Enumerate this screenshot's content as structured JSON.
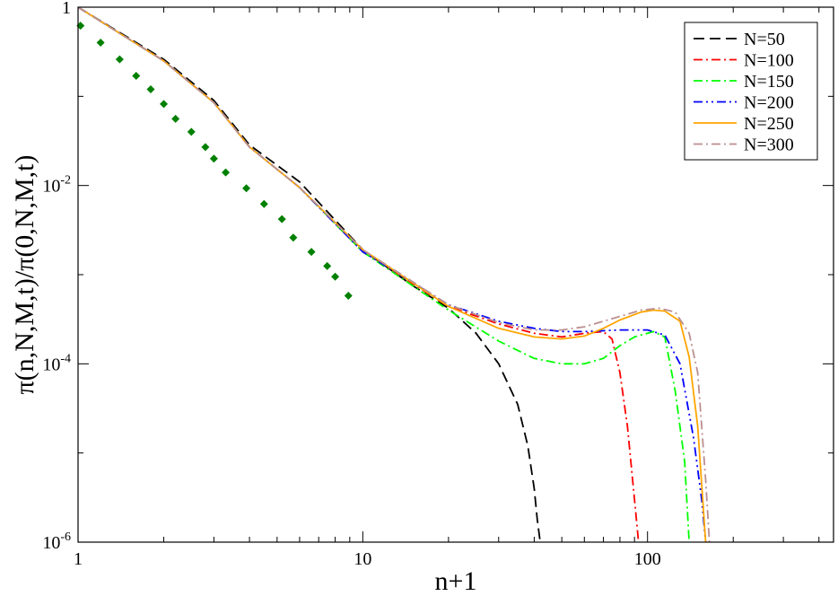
{
  "chart_data": {
    "type": "line",
    "xlabel": "n+1",
    "ylabel": "π(n,N,M,t)/π(0,N,M,t)",
    "xscale": "log",
    "yscale": "log",
    "xlim": [
      1,
      450
    ],
    "ylim": [
      1e-06,
      1
    ],
    "x_ticks": [
      {
        "value": 1,
        "label": "1"
      },
      {
        "value": 10,
        "label": "10"
      },
      {
        "value": 100,
        "label": "100"
      }
    ],
    "y_ticks": [
      {
        "value": 1,
        "base": "1",
        "exp": ""
      },
      {
        "value": 0.01,
        "base": "10",
        "exp": "-2"
      },
      {
        "value": 0.0001,
        "base": "10",
        "exp": "-4"
      },
      {
        "value": 1e-06,
        "base": "10",
        "exp": "-6"
      }
    ],
    "grid": false,
    "legend_position": "top-right",
    "series": [
      {
        "name": "N=50",
        "color": "#000000",
        "dash": "12,6",
        "points": [
          [
            1,
            1
          ],
          [
            2,
            0.26
          ],
          [
            3,
            0.09
          ],
          [
            4,
            0.0285
          ],
          [
            6,
            0.011
          ],
          [
            10,
            0.0019
          ],
          [
            15,
            0.00075
          ],
          [
            20,
            0.00042
          ],
          [
            25,
            0.00022
          ],
          [
            30,
            0.0001
          ],
          [
            35,
            3.5e-05
          ],
          [
            38,
            1.2e-05
          ],
          [
            40,
            4e-06
          ],
          [
            41,
            1.8e-06
          ],
          [
            42,
            1e-06
          ]
        ]
      },
      {
        "name": "N=100",
        "color": "#ff0000",
        "dash": "10,4,2,4",
        "points": [
          [
            1,
            1
          ],
          [
            2,
            0.25
          ],
          [
            3,
            0.085
          ],
          [
            4,
            0.027
          ],
          [
            6,
            0.0095
          ],
          [
            10,
            0.0018
          ],
          [
            20,
            0.00044
          ],
          [
            30,
            0.00028
          ],
          [
            40,
            0.00022
          ],
          [
            50,
            0.0002
          ],
          [
            60,
            0.00022
          ],
          [
            70,
            0.00023
          ],
          [
            75,
            0.00019
          ],
          [
            80,
            8e-05
          ],
          [
            85,
            2e-05
          ],
          [
            90,
            3e-06
          ],
          [
            93,
            1e-06
          ]
        ]
      },
      {
        "name": "N=150",
        "color": "#00ff00",
        "dash": "10,4,2,4",
        "points": [
          [
            1,
            1
          ],
          [
            2,
            0.25
          ],
          [
            3,
            0.085
          ],
          [
            4,
            0.027
          ],
          [
            6,
            0.0095
          ],
          [
            10,
            0.0018
          ],
          [
            20,
            0.0004
          ],
          [
            30,
            0.00018
          ],
          [
            40,
            0.000115
          ],
          [
            50,
            0.0001
          ],
          [
            60,
            0.0001
          ],
          [
            70,
            0.000115
          ],
          [
            80,
            0.00016
          ],
          [
            90,
            0.0002
          ],
          [
            105,
            0.00023
          ],
          [
            115,
            0.0002
          ],
          [
            125,
            5e-05
          ],
          [
            135,
            8e-06
          ],
          [
            140,
            1e-06
          ]
        ]
      },
      {
        "name": "N=200",
        "color": "#0000ff",
        "dash": "10,4,2,4,2,4",
        "points": [
          [
            1,
            1
          ],
          [
            2,
            0.25
          ],
          [
            3,
            0.085
          ],
          [
            4,
            0.027
          ],
          [
            6,
            0.0095
          ],
          [
            10,
            0.0018
          ],
          [
            20,
            0.00046
          ],
          [
            30,
            0.0003
          ],
          [
            40,
            0.00025
          ],
          [
            50,
            0.00023
          ],
          [
            60,
            0.00023
          ],
          [
            80,
            0.00024
          ],
          [
            100,
            0.00024
          ],
          [
            115,
            0.00021
          ],
          [
            130,
            0.0001
          ],
          [
            145,
            1.5e-05
          ],
          [
            155,
            3e-06
          ],
          [
            160,
            1e-06
          ]
        ]
      },
      {
        "name": "N=250",
        "color": "#ffa500",
        "dash": "",
        "points": [
          [
            1,
            1
          ],
          [
            2,
            0.25
          ],
          [
            3,
            0.085
          ],
          [
            4,
            0.027
          ],
          [
            6,
            0.0095
          ],
          [
            10,
            0.0019
          ],
          [
            20,
            0.00044
          ],
          [
            30,
            0.00025
          ],
          [
            40,
            0.0002
          ],
          [
            50,
            0.00019
          ],
          [
            60,
            0.000205
          ],
          [
            70,
            0.00025
          ],
          [
            80,
            0.00031
          ],
          [
            95,
            0.00038
          ],
          [
            105,
            0.0004
          ],
          [
            115,
            0.00039
          ],
          [
            130,
            0.0003
          ],
          [
            140,
            0.00012
          ],
          [
            150,
            2e-05
          ],
          [
            160,
            1e-06
          ]
        ]
      },
      {
        "name": "N=300",
        "color": "#bc8f8f",
        "dash": "10,4,2,4",
        "points": [
          [
            1,
            1
          ],
          [
            2,
            0.25
          ],
          [
            3,
            0.085
          ],
          [
            4,
            0.027
          ],
          [
            6,
            0.0095
          ],
          [
            10,
            0.0019
          ],
          [
            20,
            0.00046
          ],
          [
            30,
            0.00029
          ],
          [
            40,
            0.00024
          ],
          [
            50,
            0.00024
          ],
          [
            60,
            0.00026
          ],
          [
            70,
            0.0003
          ],
          [
            80,
            0.00034
          ],
          [
            95,
            0.0004
          ],
          [
            110,
            0.00042
          ],
          [
            125,
            0.00038
          ],
          [
            140,
            0.00022
          ],
          [
            150,
            8e-05
          ],
          [
            160,
            5e-06
          ],
          [
            165,
            1e-06
          ]
        ]
      }
    ],
    "markers": {
      "color": "#008000",
      "shape": "diamond",
      "points": [
        [
          1.02,
          0.62
        ],
        [
          1.2,
          0.4
        ],
        [
          1.4,
          0.26
        ],
        [
          1.6,
          0.17
        ],
        [
          1.8,
          0.12
        ],
        [
          2.0,
          0.082
        ],
        [
          2.2,
          0.056
        ],
        [
          2.5,
          0.04
        ],
        [
          2.8,
          0.027
        ],
        [
          3.0,
          0.02
        ],
        [
          3.3,
          0.014
        ],
        [
          3.9,
          0.0093
        ],
        [
          4.5,
          0.0062
        ],
        [
          5.2,
          0.0042
        ],
        [
          5.7,
          0.0026
        ],
        [
          6.6,
          0.0018
        ],
        [
          7.5,
          0.00125
        ],
        [
          8.0,
          0.00095
        ],
        [
          8.9,
          0.00058
        ]
      ]
    }
  }
}
